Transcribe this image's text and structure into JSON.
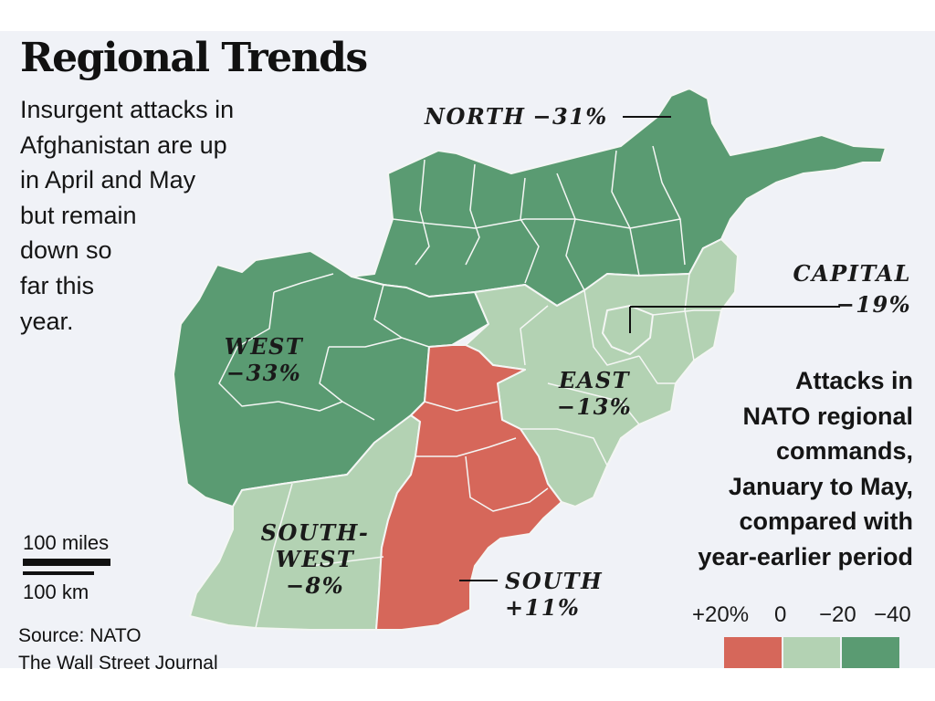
{
  "title": "Regional Trends",
  "intro_lines": [
    "Insurgent attacks in",
    "Afghanistan are up",
    "in April and May",
    "but remain",
    "down so",
    "far this",
    "year."
  ],
  "regions": {
    "north": {
      "name": "NORTH",
      "value": "−31%",
      "pct": -31,
      "fill": "#5a9b72"
    },
    "west": {
      "name": "WEST",
      "value": "−33%",
      "pct": -33,
      "fill": "#5a9b72"
    },
    "capital": {
      "name": "CAPITAL",
      "value": "−19%",
      "pct": -19,
      "fill": "#b3d2b3"
    },
    "east": {
      "name": "EAST",
      "value": "−13%",
      "pct": -13,
      "fill": "#b3d2b3"
    },
    "southwest": {
      "name_line1": "SOUTH-",
      "name_line2": "WEST",
      "value": "−8%",
      "pct": -8,
      "fill": "#b3d2b3"
    },
    "south": {
      "name": "SOUTH",
      "value": "+11%",
      "pct": 11,
      "fill": "#d6675a"
    }
  },
  "legend": {
    "title_lines": [
      "Attacks in",
      "NATO regional",
      "commands,",
      "January to May,",
      "compared with",
      "year-earlier period"
    ],
    "ticks": [
      "+20%",
      "0",
      "−20",
      "−40"
    ],
    "colors": [
      "#d6675a",
      "#b3d2b3",
      "#5a9b72"
    ]
  },
  "scale": {
    "miles": "100 miles",
    "km": "100 km"
  },
  "source_lines": [
    "Source: NATO",
    "The Wall Street Journal"
  ]
}
